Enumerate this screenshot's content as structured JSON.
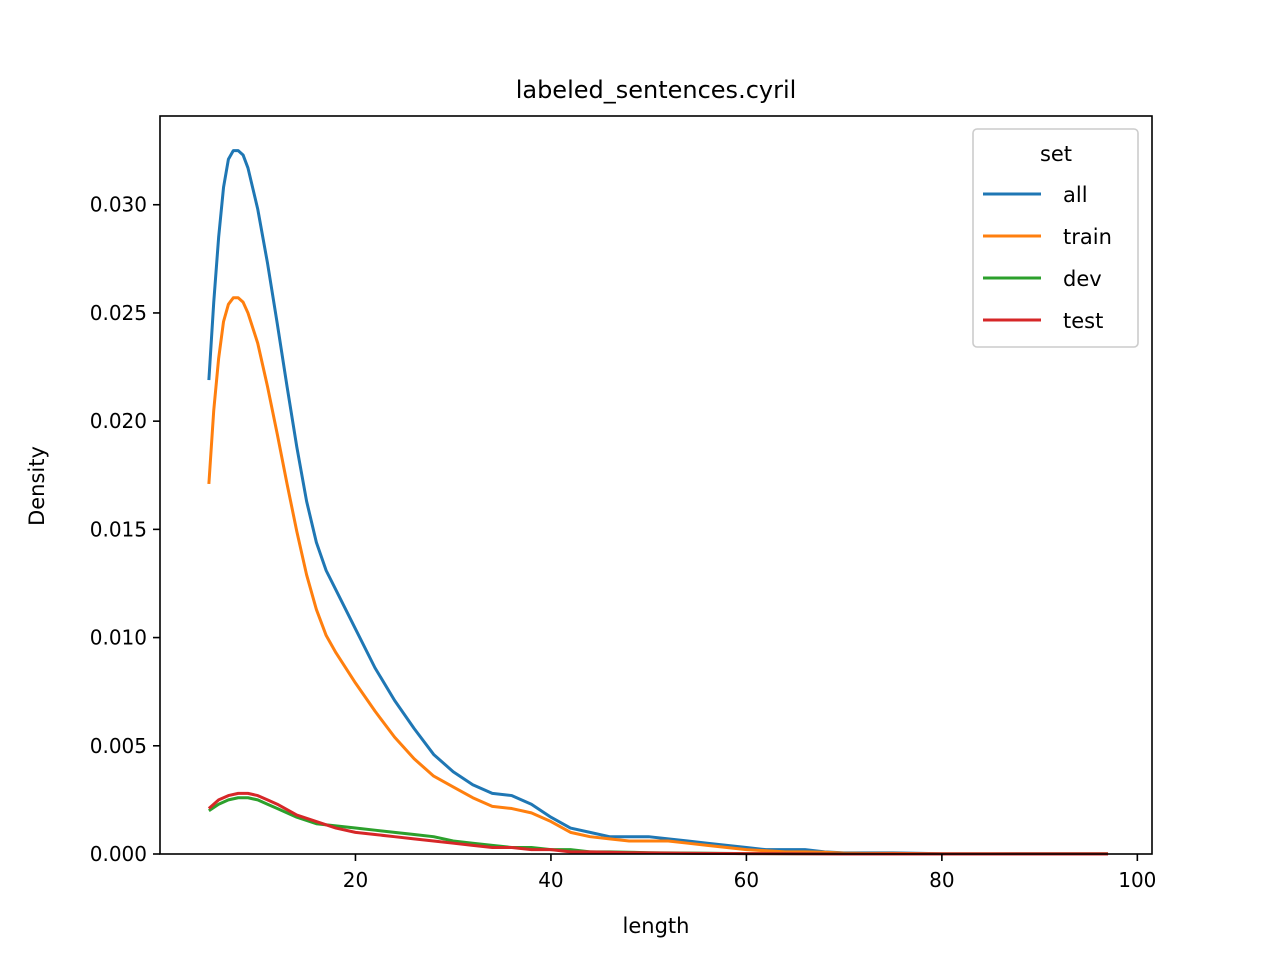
{
  "chart_data": {
    "type": "line",
    "title": "labeled_sentences.cyril",
    "xlabel": "length",
    "ylabel": "Density",
    "xlim": [
      0,
      101.5
    ],
    "ylim": [
      0,
      0.0341
    ],
    "xticks": [
      20,
      40,
      60,
      80,
      100
    ],
    "xtick_labels": [
      "20",
      "40",
      "60",
      "80",
      "100"
    ],
    "yticks": [
      0,
      0.005,
      0.01,
      0.015,
      0.02,
      0.025,
      0.03
    ],
    "ytick_labels": [
      "0.000",
      "0.005",
      "0.010",
      "0.015",
      "0.020",
      "0.025",
      "0.030"
    ],
    "grid": false,
    "legend": {
      "title": "set",
      "position": "top-right"
    },
    "series": [
      {
        "name": "all",
        "color": "#1f77b4",
        "x": [
          5,
          5.5,
          6,
          6.5,
          7,
          7.5,
          8,
          8.5,
          9,
          10,
          11,
          12,
          13,
          14,
          15,
          16,
          17,
          18,
          20,
          22,
          24,
          26,
          28,
          30,
          32,
          34,
          36,
          38,
          40,
          42,
          44,
          46,
          48,
          50,
          52,
          54,
          56,
          58,
          60,
          62,
          64,
          66,
          68,
          70,
          72,
          75,
          78,
          80,
          85,
          90,
          95,
          97
        ],
        "y": [
          0.0219,
          0.0255,
          0.0285,
          0.0308,
          0.0321,
          0.0325,
          0.0325,
          0.0323,
          0.0317,
          0.0298,
          0.0273,
          0.0245,
          0.0216,
          0.0188,
          0.0163,
          0.0144,
          0.0131,
          0.0122,
          0.0104,
          0.0086,
          0.0071,
          0.0058,
          0.0046,
          0.0038,
          0.0032,
          0.0028,
          0.0027,
          0.0023,
          0.0017,
          0.0012,
          0.001,
          0.0008,
          0.0008,
          0.0008,
          0.0007,
          0.0006,
          0.0005,
          0.0004,
          0.0003,
          0.0002,
          0.0002,
          0.0002,
          0.0001,
          5e-05,
          5e-05,
          5e-05,
          3e-05,
          1e-05,
          1e-05,
          2e-05,
          2e-05,
          2e-05
        ]
      },
      {
        "name": "train",
        "color": "#ff7f0e",
        "x": [
          5,
          5.5,
          6,
          6.5,
          7,
          7.5,
          8,
          8.5,
          9,
          10,
          11,
          12,
          13,
          14,
          15,
          16,
          17,
          18,
          20,
          22,
          24,
          26,
          28,
          30,
          32,
          34,
          36,
          38,
          40,
          42,
          44,
          46,
          48,
          50,
          52,
          54,
          56,
          58,
          60,
          62,
          64,
          66,
          68,
          70,
          72,
          75,
          78,
          80,
          85,
          90,
          95,
          97
        ],
        "y": [
          0.0171,
          0.0205,
          0.0229,
          0.0246,
          0.0254,
          0.0257,
          0.0257,
          0.0255,
          0.025,
          0.0236,
          0.0216,
          0.0194,
          0.0171,
          0.0149,
          0.0129,
          0.0113,
          0.0101,
          0.0093,
          0.0079,
          0.0066,
          0.0054,
          0.0044,
          0.0036,
          0.0031,
          0.0026,
          0.0022,
          0.0021,
          0.0019,
          0.0015,
          0.001,
          0.0008,
          0.0007,
          0.0006,
          0.0006,
          0.0006,
          0.0005,
          0.0004,
          0.0003,
          0.0002,
          0.00015,
          0.0001,
          0.0001,
          8e-05,
          4e-05,
          3e-05,
          3e-05,
          2e-05,
          1e-05,
          1e-05,
          1e-05,
          1e-05,
          1e-05
        ]
      },
      {
        "name": "dev",
        "color": "#2ca02c",
        "x": [
          5,
          6,
          7,
          8,
          9,
          10,
          11,
          12,
          14,
          16,
          18,
          20,
          22,
          24,
          26,
          28,
          30,
          32,
          34,
          36,
          38,
          40,
          42,
          44,
          46,
          48,
          50,
          55,
          60,
          65,
          70,
          75,
          80,
          85,
          90,
          95,
          97
        ],
        "y": [
          0.002,
          0.0023,
          0.0025,
          0.0026,
          0.0026,
          0.0025,
          0.0023,
          0.0021,
          0.0017,
          0.0014,
          0.0013,
          0.0012,
          0.0011,
          0.001,
          0.0009,
          0.0008,
          0.0006,
          0.0005,
          0.0004,
          0.0003,
          0.0003,
          0.0002,
          0.0002,
          0.0001,
          0.0001,
          8e-05,
          6e-05,
          4e-05,
          2e-05,
          1e-05,
          1e-05,
          0,
          0,
          0,
          0,
          0,
          0
        ]
      },
      {
        "name": "test",
        "color": "#d62728",
        "x": [
          5,
          6,
          7,
          8,
          9,
          10,
          11,
          12,
          14,
          16,
          18,
          20,
          22,
          24,
          26,
          28,
          30,
          32,
          34,
          36,
          38,
          40,
          42,
          44,
          46,
          48,
          50,
          55,
          60,
          65,
          70,
          75,
          80,
          85,
          90,
          95,
          97
        ],
        "y": [
          0.0021,
          0.0025,
          0.0027,
          0.0028,
          0.0028,
          0.0027,
          0.0025,
          0.0023,
          0.0018,
          0.0015,
          0.0012,
          0.001,
          0.0009,
          0.0008,
          0.0007,
          0.0006,
          0.0005,
          0.0004,
          0.0003,
          0.0003,
          0.0002,
          0.0002,
          0.0001,
          0.0001,
          8e-05,
          6e-05,
          5e-05,
          3e-05,
          2e-05,
          1e-05,
          0,
          0,
          0,
          0,
          0,
          0,
          0
        ]
      }
    ]
  }
}
